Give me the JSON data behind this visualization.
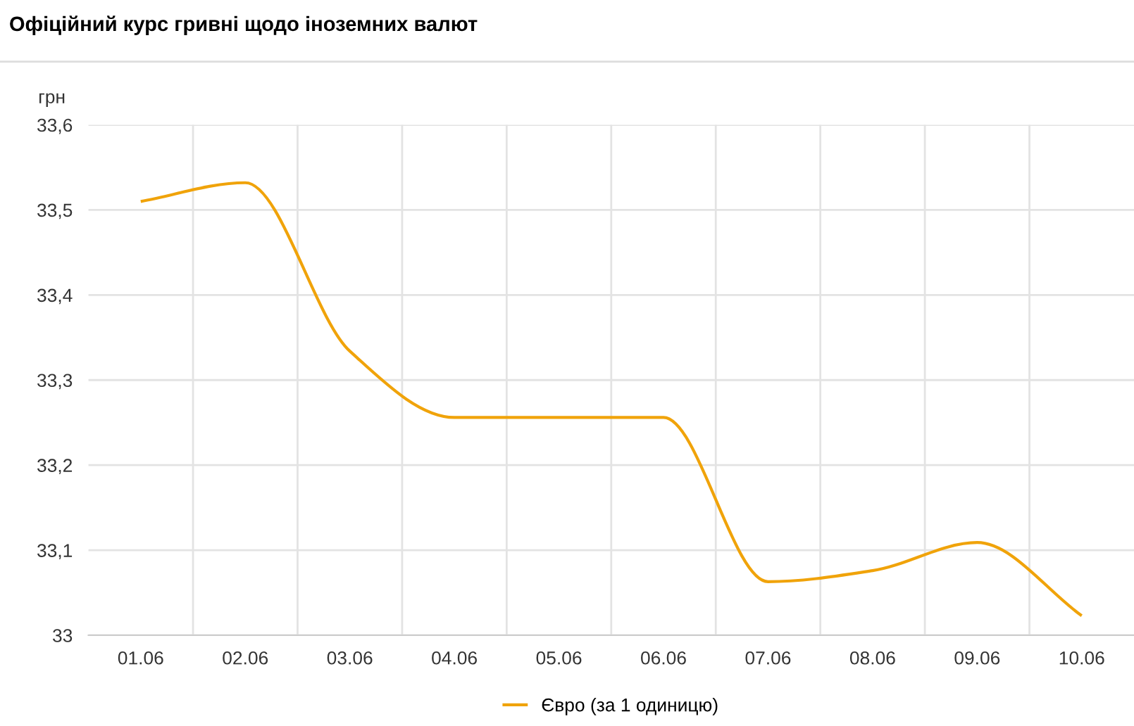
{
  "chart_data": {
    "type": "line",
    "title": "Офіційний курс гривні щодо іноземних валют",
    "ylabel": "грн",
    "categories": [
      "01.06",
      "02.06",
      "03.06",
      "04.06",
      "05.06",
      "06.06",
      "07.06",
      "08.06",
      "09.06",
      "10.06"
    ],
    "series": [
      {
        "name": "Євро (за 1 одиницю)",
        "color": "#f0a30a",
        "values": [
          33.51,
          33.532,
          33.334,
          33.256,
          33.256,
          33.256,
          33.063,
          33.076,
          33.109,
          33.023
        ]
      }
    ],
    "ylim": [
      33,
      33.6
    ],
    "yticks": [
      {
        "value": 33,
        "label": "33"
      },
      {
        "value": 33.1,
        "label": "33,1"
      },
      {
        "value": 33.2,
        "label": "33,2"
      },
      {
        "value": 33.3,
        "label": "33,3"
      },
      {
        "value": 33.4,
        "label": "33,4"
      },
      {
        "value": 33.5,
        "label": "33,5"
      },
      {
        "value": 33.6,
        "label": "33,6"
      }
    ],
    "grid": true,
    "legend": "bottom",
    "marker": "none",
    "line_style": "solid"
  }
}
